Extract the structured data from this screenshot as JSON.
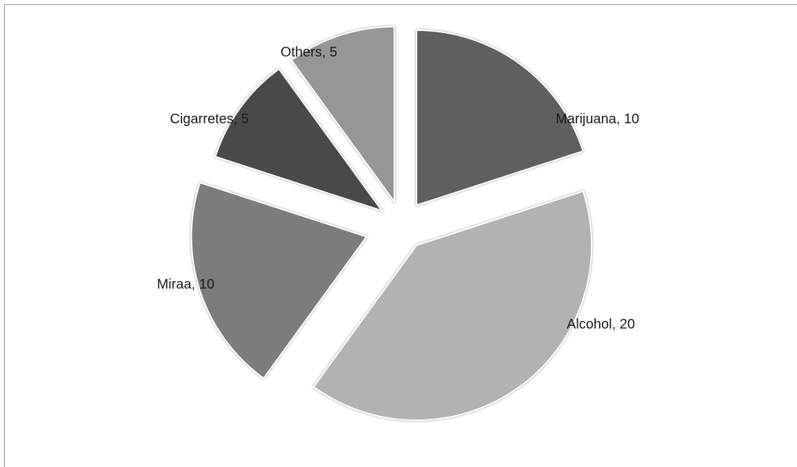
{
  "chart_data": {
    "type": "pie",
    "title": "",
    "exploded": true,
    "slices": [
      {
        "label": "Marijuana",
        "value": 10,
        "color": "#5e5e5e",
        "text": "Marijuana, 10"
      },
      {
        "label": "Alcohol",
        "value": 20,
        "color": "#b2b2b2",
        "text": "Alcohol, 20"
      },
      {
        "label": "Miraa",
        "value": 10,
        "color": "#7c7c7c",
        "text": "Miraa, 10"
      },
      {
        "label": "Cigarretes",
        "value": 5,
        "color": "#4a4a4a",
        "text": "Cigarretes, 5"
      },
      {
        "label": "Others",
        "value": 5,
        "color": "#969696",
        "text": "Others, 5"
      }
    ],
    "legend": "none"
  }
}
